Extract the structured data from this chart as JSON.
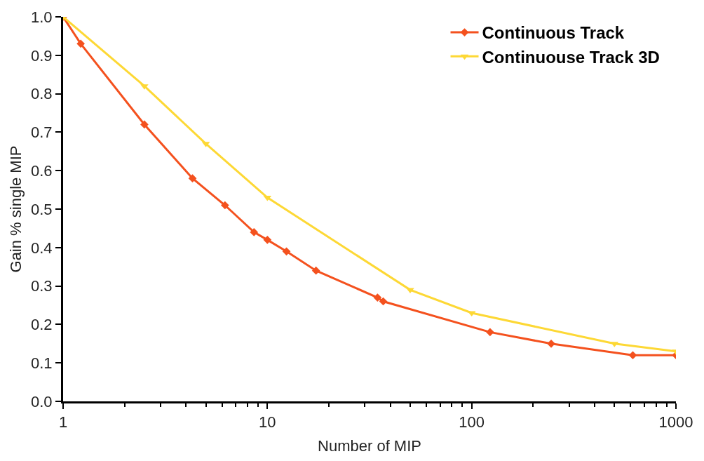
{
  "chart_data": {
    "type": "line",
    "xlabel": "Number of MIP",
    "ylabel": "Gain % single MIP",
    "log": "x",
    "legend": "top right",
    "line_style": "solid",
    "xlim": [
      1,
      1000
    ],
    "xticks": [
      1,
      10,
      100,
      1000
    ],
    "ylim": [
      0,
      1.0
    ],
    "yticks": [
      {
        "value": 0,
        "label": "0.0"
      },
      {
        "value": 0.1,
        "label": "0.1"
      },
      {
        "value": 0.2,
        "label": "0.2"
      },
      {
        "value": 0.3,
        "label": "0.3"
      },
      {
        "value": 0.4,
        "label": "0.4"
      },
      {
        "value": 0.5,
        "label": "0.5"
      },
      {
        "value": 0.6,
        "label": "0.6"
      },
      {
        "value": 0.7,
        "label": "0.7"
      },
      {
        "value": 0.8,
        "label": "0.8"
      },
      {
        "value": 0.9,
        "label": "0.9"
      },
      {
        "value": 1.0,
        "label": "1.0"
      }
    ],
    "series": [
      {
        "name": "Continuous Track",
        "color": "#f4511e",
        "marker": "diamond",
        "x": [
          1,
          1.22,
          2.5,
          4.3,
          6.2,
          8.6,
          10,
          12.4,
          17.3,
          34.6,
          36.9,
          123,
          245,
          615,
          1000
        ],
        "values": [
          1.0,
          0.93,
          0.72,
          0.58,
          0.51,
          0.44,
          0.42,
          0.39,
          0.34,
          0.27,
          0.26,
          0.18,
          0.15,
          0.12,
          0.12
        ]
      },
      {
        "name": "Continuouse Track 3D",
        "color": "#fdd835",
        "marker": "triangle",
        "x": [
          1,
          2.5,
          5,
          10,
          50,
          100,
          500,
          1000
        ],
        "values": [
          1.0,
          0.82,
          0.67,
          0.53,
          0.29,
          0.23,
          0.15,
          0.13
        ]
      }
    ]
  }
}
